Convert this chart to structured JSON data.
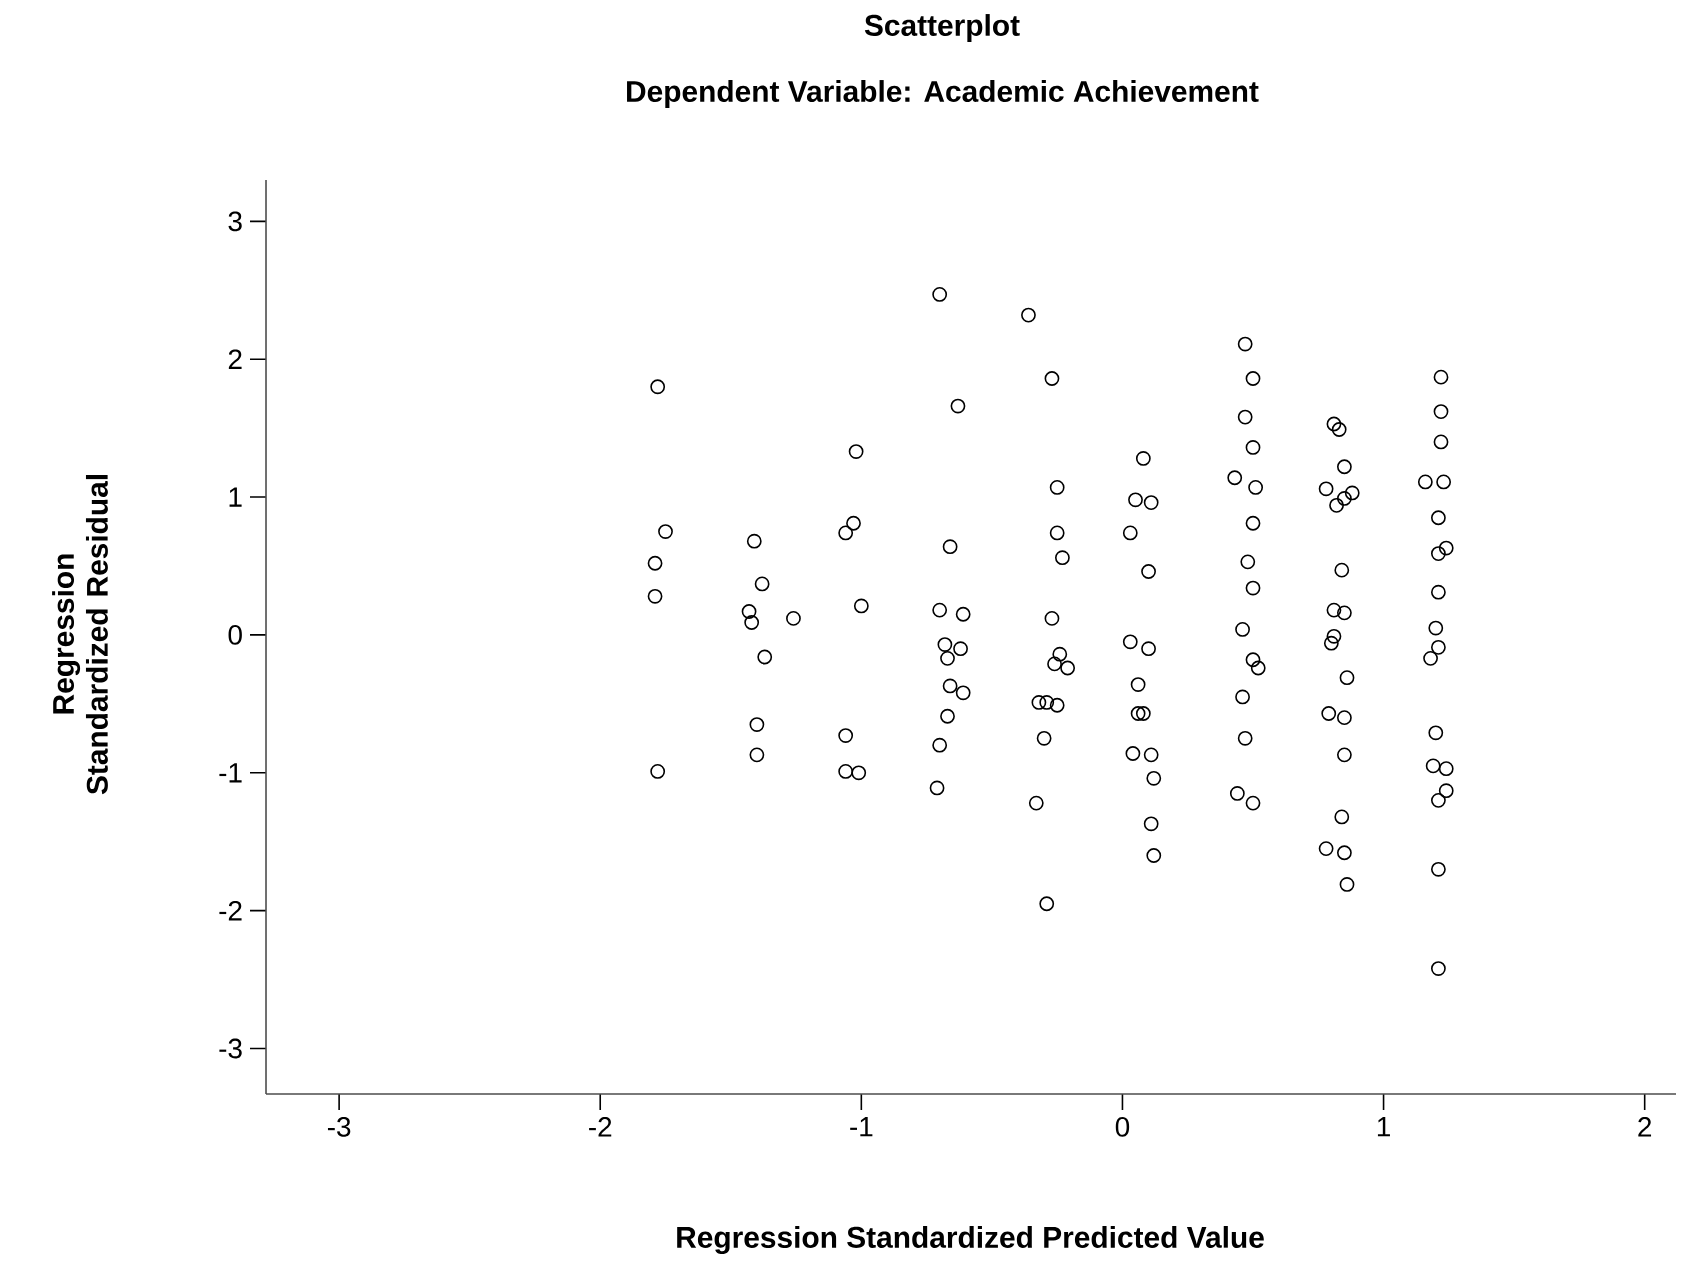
{
  "chart_data": {
    "type": "scatter",
    "title": "Scatterplot",
    "subtitle": "Dependent Variable: Academic Achievement",
    "xlabel": "Regression Standardized Predicted Value",
    "ylabel": "Regression Standardized Residual",
    "xlim": [
      -3.28,
      2.12
    ],
    "ylim": [
      -3.33,
      3.3
    ],
    "xticks": [
      -3,
      -2,
      -1,
      0,
      1,
      2
    ],
    "yticks": [
      -3,
      -2,
      -1,
      0,
      1,
      2,
      3
    ],
    "marker": "circle",
    "series": [
      {
        "color": "#000000",
        "x": [
          -1.78,
          -1.75,
          -1.79,
          -1.79,
          -1.78,
          -1.41,
          -1.38,
          -1.43,
          -1.42,
          -1.37,
          -1.4,
          -1.4,
          -1.26,
          -1.02,
          -1.03,
          -1.06,
          -1.0,
          -1.06,
          -1.06,
          -1.01,
          -0.7,
          -0.63,
          -0.66,
          -0.7,
          -0.61,
          -0.68,
          -0.62,
          -0.67,
          -0.66,
          -0.61,
          -0.67,
          -0.7,
          -0.71,
          -0.36,
          -0.27,
          -0.25,
          -0.25,
          -0.23,
          -0.27,
          -0.24,
          -0.26,
          -0.21,
          -0.32,
          -0.29,
          -0.25,
          -0.3,
          -0.33,
          -0.29,
          0.08,
          0.05,
          0.11,
          0.03,
          0.1,
          0.03,
          0.1,
          0.06,
          0.06,
          0.08,
          0.04,
          0.11,
          0.12,
          0.11,
          0.12,
          0.47,
          0.5,
          0.47,
          0.5,
          0.43,
          0.51,
          0.5,
          0.48,
          0.5,
          0.46,
          0.5,
          0.52,
          0.46,
          0.47,
          0.44,
          0.5,
          0.81,
          0.83,
          0.85,
          0.78,
          0.88,
          0.85,
          0.82,
          0.84,
          0.81,
          0.85,
          0.81,
          0.8,
          0.86,
          0.79,
          0.85,
          0.85,
          0.84,
          0.78,
          0.85,
          0.86,
          1.22,
          1.22,
          1.22,
          1.16,
          1.23,
          1.21,
          1.21,
          1.24,
          1.21,
          1.2,
          1.21,
          1.18,
          1.2,
          1.19,
          1.24,
          1.24,
          1.21,
          1.21,
          1.21
        ],
        "values": [
          1.8,
          0.75,
          0.52,
          0.28,
          -0.99,
          0.68,
          0.37,
          0.17,
          0.09,
          -0.16,
          -0.65,
          -0.87,
          0.12,
          1.33,
          0.81,
          0.74,
          0.21,
          -0.73,
          -0.99,
          -1.0,
          2.47,
          1.66,
          0.64,
          0.18,
          0.15,
          -0.07,
          -0.1,
          -0.17,
          -0.37,
          -0.42,
          -0.59,
          -0.8,
          -1.11,
          2.32,
          1.86,
          1.07,
          0.74,
          0.56,
          0.12,
          -0.14,
          -0.21,
          -0.24,
          -0.49,
          -0.49,
          -0.51,
          -0.75,
          -1.22,
          -1.95,
          1.28,
          0.98,
          0.96,
          0.74,
          0.46,
          -0.05,
          -0.1,
          -0.36,
          -0.57,
          -0.57,
          -0.86,
          -0.87,
          -1.04,
          -1.37,
          -1.6,
          2.11,
          1.86,
          1.58,
          1.36,
          1.14,
          1.07,
          0.81,
          0.53,
          0.34,
          0.04,
          -0.18,
          -0.24,
          -0.45,
          -0.75,
          -1.15,
          -1.22,
          1.53,
          1.49,
          1.22,
          1.06,
          1.03,
          0.99,
          0.94,
          0.47,
          0.18,
          0.16,
          -0.01,
          -0.06,
          -0.31,
          -0.57,
          -0.6,
          -0.87,
          -1.32,
          -1.55,
          -1.58,
          -1.81,
          1.87,
          1.62,
          1.4,
          1.11,
          1.11,
          0.85,
          0.59,
          0.63,
          0.31,
          0.05,
          -0.09,
          -0.17,
          -0.71,
          -0.95,
          -0.97,
          -1.13,
          -1.2,
          -1.7,
          -2.42
        ]
      }
    ]
  }
}
